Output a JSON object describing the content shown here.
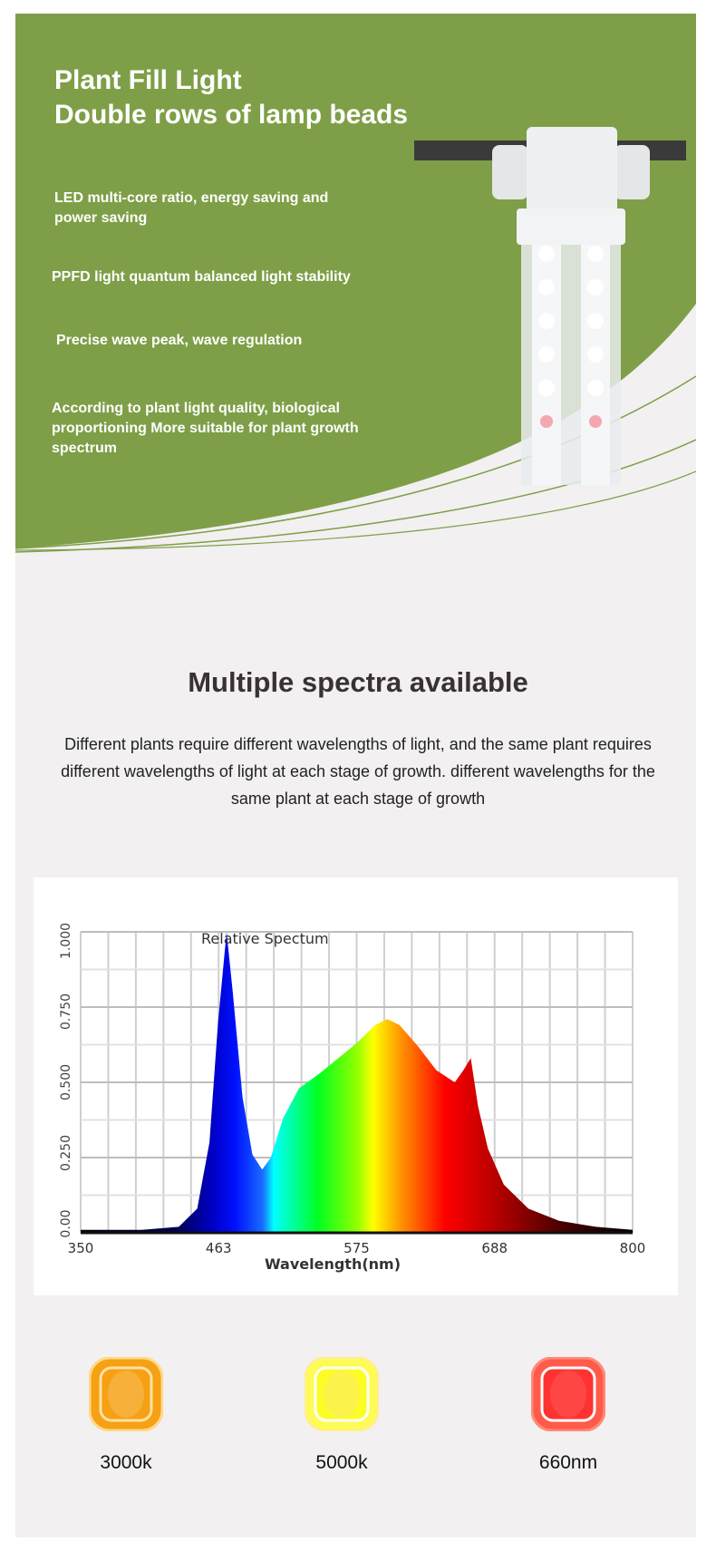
{
  "hero": {
    "title_line1": "Plant Fill Light",
    "title_line2": "Double rows of lamp beads",
    "bullets": [
      "LED multi-core ratio, energy saving and power saving",
      "PPFD light quantum balanced light stability",
      "Precise wave peak, wave regulation",
      "According to plant light quality, biological proportioning More suitable for plant growth spectrum"
    ],
    "brand_color": "#7e9f47"
  },
  "section": {
    "heading": "Multiple spectra available",
    "description": "Different plants require different wavelengths of light, and the same plant requires different wavelengths of light at each stage of growth. different wavelengths for the same plant at each stage of growth"
  },
  "chart_data": {
    "type": "area",
    "title": "Relative Spectum",
    "xlabel": "Wavelength(nm)",
    "ylabel": "",
    "xlim": [
      350,
      800
    ],
    "ylim": [
      0,
      1
    ],
    "x_ticks": [
      "350",
      "463",
      "575",
      "688",
      "800"
    ],
    "y_ticks": [
      "0.00",
      "0.250",
      "0.500",
      "0.750",
      "1.000"
    ],
    "grid": true,
    "x": [
      350,
      400,
      430,
      445,
      455,
      462,
      469,
      474,
      482,
      490,
      498,
      505,
      515,
      528,
      545,
      560,
      575,
      590,
      600,
      610,
      625,
      640,
      655,
      662,
      668,
      674,
      682,
      695,
      715,
      740,
      770,
      800
    ],
    "y": [
      0.01,
      0.01,
      0.02,
      0.08,
      0.3,
      0.7,
      1.0,
      0.8,
      0.45,
      0.26,
      0.21,
      0.25,
      0.38,
      0.48,
      0.53,
      0.58,
      0.63,
      0.69,
      0.71,
      0.69,
      0.62,
      0.54,
      0.5,
      0.54,
      0.58,
      0.42,
      0.28,
      0.16,
      0.08,
      0.04,
      0.02,
      0.01
    ]
  },
  "spectra": [
    {
      "label": "3000k",
      "color": "#f5a113",
      "rim": "#ffd889"
    },
    {
      "label": "5000k",
      "color": "#fdfd26",
      "rim": "#fff08a"
    },
    {
      "label": "660nm",
      "color": "#ff3232",
      "rim": "#ff8a7a"
    }
  ]
}
